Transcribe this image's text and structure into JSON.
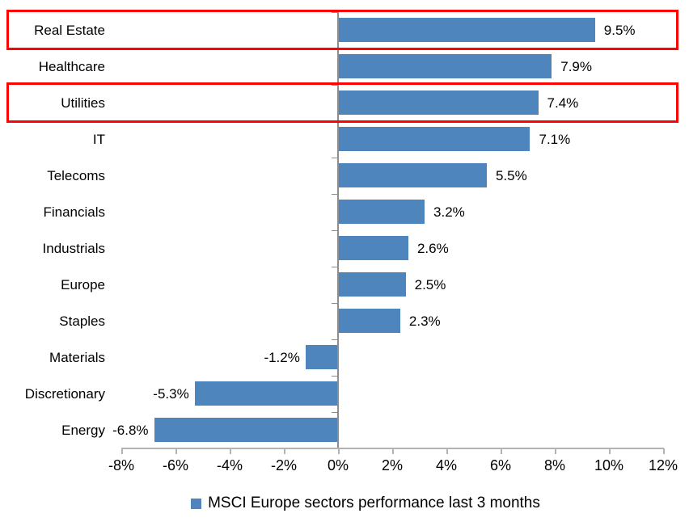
{
  "chart_data": {
    "type": "bar",
    "orientation": "horizontal",
    "title": "",
    "xlabel": "",
    "ylabel": "",
    "categories": [
      "Real Estate",
      "Healthcare",
      "Utilities",
      "IT",
      "Telecoms",
      "Financials",
      "Industrials",
      "Europe",
      "Staples",
      "Materials",
      "Discretionary",
      "Energy"
    ],
    "values": [
      9.5,
      7.9,
      7.4,
      7.1,
      5.5,
      3.2,
      2.6,
      2.5,
      2.3,
      -1.2,
      -5.3,
      -6.8
    ],
    "value_labels": [
      "9.5%",
      "7.9%",
      "7.4%",
      "7.1%",
      "5.5%",
      "3.2%",
      "2.6%",
      "2.5%",
      "2.3%",
      "-1.2%",
      "-5.3%",
      "-6.8%"
    ],
    "x_ticks": [
      "-8%",
      "-6%",
      "-4%",
      "-2%",
      "0%",
      "2%",
      "4%",
      "6%",
      "8%",
      "10%",
      "12%"
    ],
    "xlim": [
      -8,
      12
    ],
    "grid": false,
    "legend": "MSCI Europe sectors performance last 3 months",
    "legend_position": "bottom"
  },
  "annotations": {
    "highlighted_categories": [
      "Real Estate",
      "Utilities"
    ]
  },
  "colors": {
    "bar": "#4e85bd",
    "highlight_border": "#fb0404",
    "category_axis": "#8e8e8e",
    "value_axis": "#b3b3b3",
    "text": "#000000"
  }
}
